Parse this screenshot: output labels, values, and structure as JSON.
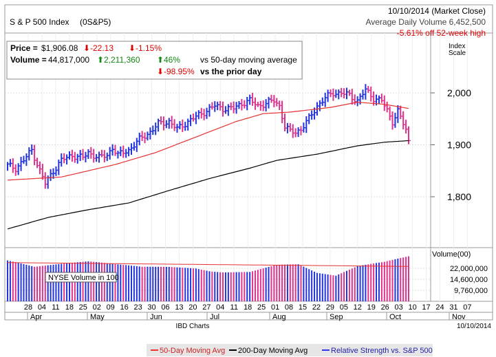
{
  "header": {
    "name": "S & P 500 Index",
    "symbol": "(0S&P5)",
    "date": "10/10/2014 (Market Close)",
    "avg_volume": "Average Daily Volume 6,452,500",
    "off_high": "-5.61% off 52-week high"
  },
  "stats": {
    "price_label": "Price =",
    "price_value": "$1,906.08",
    "price_change": "-22.13",
    "price_change_pct": "-1.15%",
    "volume_label": "Volume =",
    "volume_value": "44,817,000",
    "volume_change": "2,211,360",
    "volume_change_pct": "46%",
    "vs_50day": "vs 50-day moving average",
    "prior_day_pct": "-98.95%",
    "vs_prior": "vs the prior day"
  },
  "labels": {
    "index_scale": [
      "Index",
      "Scale"
    ],
    "volume_scale": "Volume(00)",
    "nyse_volume": "NYSE Volume in 100",
    "source": "IBD Charts",
    "footer_date": "10/10/2014"
  },
  "legend": [
    {
      "label": "50-Day Moving Avg",
      "color": "#ee3333",
      "text_color": "#cc2222"
    },
    {
      "label": "200-Day Moving Avg",
      "color": "#000000",
      "text_color": "#000000"
    },
    {
      "label": "Relative Strength vs. S&P 500",
      "color": "#3333ee",
      "text_color": "#2222aa"
    }
  ],
  "colors": {
    "up": "#2233dd",
    "down": "#e0308c",
    "ma50": "#e53030",
    "ma200": "#000000",
    "red_text": "#dd0000",
    "green_arrow": "#118811"
  },
  "chart_data": {
    "type": "bar",
    "price_axis": {
      "ticks": [
        1800,
        1900,
        2000
      ],
      "tick_labels": [
        "1,800",
        "1,900",
        "2,000"
      ]
    },
    "volume_axis": {
      "tick_labels": [
        "22,000,000",
        "14,600,000",
        "9,760,000"
      ]
    },
    "day_labels": [
      "28",
      "04",
      "11",
      "18",
      "25",
      "02",
      "09",
      "16",
      "23",
      "30",
      "06",
      "13",
      "20",
      "27",
      "04",
      "11",
      "18",
      "25",
      "01",
      "08",
      "15",
      "22",
      "29",
      "05",
      "12",
      "19",
      "26",
      "03",
      "10",
      "17",
      "24",
      "31",
      "07"
    ],
    "month_labels": [
      "Apr",
      "May",
      "Jun",
      "Jul",
      "Aug",
      "Sep",
      "Oct",
      "Nov"
    ],
    "daily_close_anchors": [
      [
        0,
        1860
      ],
      [
        3,
        1855
      ],
      [
        6,
        1870
      ],
      [
        9,
        1890
      ],
      [
        12,
        1850
      ],
      [
        14,
        1825
      ],
      [
        17,
        1850
      ],
      [
        20,
        1870
      ],
      [
        24,
        1880
      ],
      [
        28,
        1875
      ],
      [
        30,
        1885
      ],
      [
        34,
        1875
      ],
      [
        37,
        1880
      ],
      [
        39,
        1895
      ],
      [
        41,
        1880
      ],
      [
        45,
        1890
      ],
      [
        49,
        1910
      ],
      [
        53,
        1925
      ],
      [
        56,
        1940
      ],
      [
        60,
        1945
      ],
      [
        63,
        1930
      ],
      [
        67,
        1945
      ],
      [
        72,
        1960
      ],
      [
        77,
        1975
      ],
      [
        80,
        1970
      ],
      [
        84,
        1970
      ],
      [
        87,
        1980
      ],
      [
        90,
        1985
      ],
      [
        93,
        1975
      ],
      [
        96,
        1980
      ],
      [
        99,
        1985
      ],
      [
        101,
        1975
      ],
      [
        103,
        1935
      ],
      [
        105,
        1925
      ],
      [
        107,
        1925
      ],
      [
        109,
        1930
      ],
      [
        112,
        1950
      ],
      [
        115,
        1975
      ],
      [
        118,
        1990
      ],
      [
        121,
        2000
      ],
      [
        124,
        2000
      ],
      [
        127,
        1995
      ],
      [
        130,
        1985
      ],
      [
        133,
        2005
      ],
      [
        136,
        1990
      ],
      [
        139,
        1985
      ],
      [
        141,
        1965
      ],
      [
        143,
        1945
      ],
      [
        145,
        1965
      ],
      [
        147,
        1940
      ],
      [
        148,
        1928
      ],
      [
        149,
        1906
      ]
    ],
    "ma50_anchors": [
      [
        0,
        1832
      ],
      [
        20,
        1838
      ],
      [
        40,
        1862
      ],
      [
        55,
        1885
      ],
      [
        70,
        1915
      ],
      [
        85,
        1945
      ],
      [
        95,
        1960
      ],
      [
        105,
        1963
      ],
      [
        120,
        1972
      ],
      [
        130,
        1982
      ],
      [
        140,
        1978
      ],
      [
        149,
        1970
      ]
    ],
    "ma200_anchors": [
      [
        0,
        1738
      ],
      [
        15,
        1760
      ],
      [
        30,
        1775
      ],
      [
        45,
        1788
      ],
      [
        60,
        1812
      ],
      [
        75,
        1835
      ],
      [
        90,
        1855
      ],
      [
        100,
        1870
      ],
      [
        115,
        1882
      ],
      [
        130,
        1898
      ],
      [
        140,
        1905
      ],
      [
        149,
        1908
      ]
    ],
    "volume_scale_note": "relative bar heights (0-1) of daily NYSE volume",
    "volume_anchors": [
      [
        0,
        0.9
      ],
      [
        10,
        0.72
      ],
      [
        20,
        0.75
      ],
      [
        30,
        0.78
      ],
      [
        40,
        0.72
      ],
      [
        50,
        0.68
      ],
      [
        60,
        0.7
      ],
      [
        70,
        0.7
      ],
      [
        80,
        0.62
      ],
      [
        90,
        0.6
      ],
      [
        100,
        0.72
      ],
      [
        108,
        0.72
      ],
      [
        115,
        0.55
      ],
      [
        122,
        0.5
      ],
      [
        130,
        0.7
      ],
      [
        140,
        0.82
      ],
      [
        149,
        0.98
      ]
    ]
  }
}
